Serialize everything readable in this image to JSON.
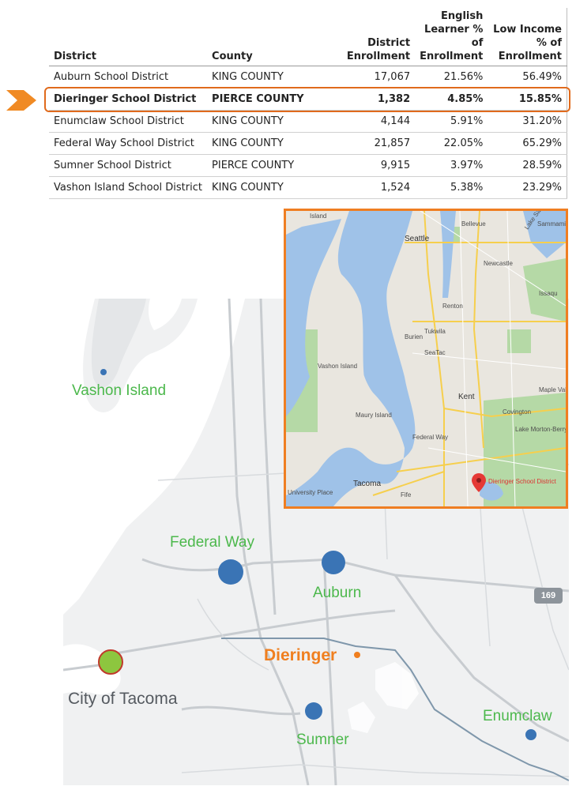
{
  "table": {
    "headers": {
      "district": "District",
      "county": "County",
      "enrollment": [
        "District",
        "Enrollment"
      ],
      "el": [
        "English",
        "Learner %",
        "of",
        "Enrollment"
      ],
      "li": [
        "Low Income",
        "% of",
        "Enrollment"
      ]
    },
    "rows": [
      {
        "district": "Auburn School District",
        "county": "KING COUNTY",
        "enrollment": "17,067",
        "el": "21.56%",
        "li": "56.49%"
      },
      {
        "district": "Dieringer School District",
        "county": "PIERCE COUNTY",
        "enrollment": "1,382",
        "el": "4.85%",
        "li": "15.85%"
      },
      {
        "district": "Enumclaw School District",
        "county": "KING COUNTY",
        "enrollment": "4,144",
        "el": "5.91%",
        "li": "31.20%"
      },
      {
        "district": "Federal Way School District",
        "county": "KING COUNTY",
        "enrollment": "21,857",
        "el": "22.05%",
        "li": "65.29%"
      },
      {
        "district": "Sumner School District",
        "county": "PIERCE COUNTY",
        "enrollment": "9,915",
        "el": "3.97%",
        "li": "28.59%"
      },
      {
        "district": "Vashon Island School District",
        "county": "KING COUNTY",
        "enrollment": "1,524",
        "el": "5.38%",
        "li": "23.29%"
      }
    ],
    "highlighted_row": "Dieringer School District",
    "highlight_color": "#e06a1c"
  },
  "map": {
    "labels": {
      "vashon": "Vashon Island",
      "federal_way": "Federal Way",
      "auburn": "Auburn",
      "dieringer": "Dieringer",
      "tacoma": "City of Tacoma",
      "sumner": "Sumner",
      "enumclaw": "Enumclaw"
    },
    "highway": "169",
    "colors": {
      "district_dot": "#3a74b5",
      "tacoma_dot": "#8dc63f",
      "dieringer": "#f07f1f",
      "label_green": "#4cb84c"
    }
  },
  "inset": {
    "labels": {
      "island": "Island",
      "seattle": "Seattle",
      "bellevue": "Bellevue",
      "sammamish": "Sammami",
      "lake_sammamish": "Lake Sammamish",
      "newcastle": "Newcastle",
      "issaquah": "Issaqu",
      "renton": "Renton",
      "tukwila": "Tukwila",
      "burien": "Burien",
      "seatac": "SeaTac",
      "vashon_island": "Vashon Island",
      "maury_island": "Maury Island",
      "kent": "Kent",
      "maple_valley": "Maple Valley",
      "covington": "Covington",
      "lake_morton": "Lake Morton-Berrydale",
      "federal_way": "Federal Way",
      "tacoma": "Tacoma",
      "fife": "Fife",
      "university_place": "University Place",
      "dieringer": "Dieringer School District"
    },
    "border_color": "#ef7e22",
    "pin_color": "#e53935"
  }
}
